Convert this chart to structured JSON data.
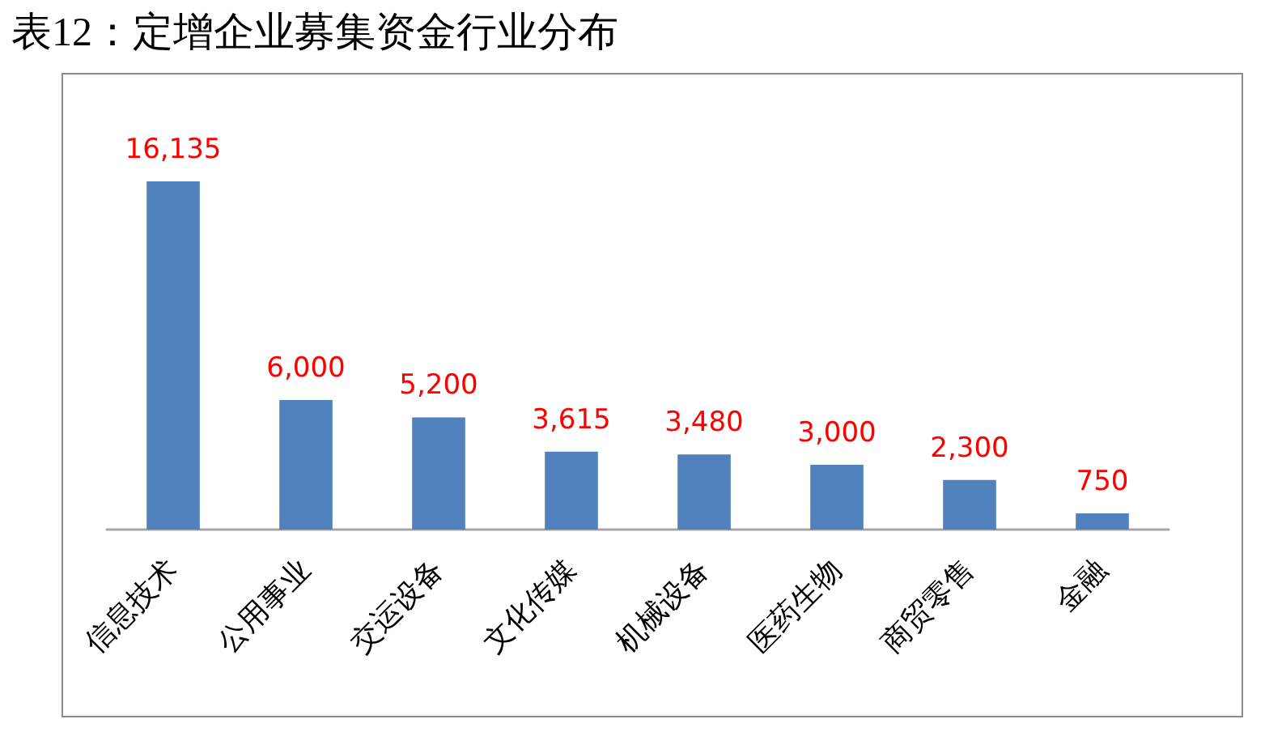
{
  "chart_data": {
    "type": "bar",
    "title": "表12：定增企业募集资金行业分布",
    "categories": [
      "信息技术",
      "公用事业",
      "交运设备",
      "文化传媒",
      "机械设备",
      "医药生物",
      "商贸零售",
      "金融"
    ],
    "values": [
      16135,
      6000,
      5200,
      3615,
      3480,
      3000,
      2300,
      750
    ],
    "value_labels": [
      "16,135",
      "6,000",
      "5,200",
      "3,615",
      "3,480",
      "3,000",
      "2,300",
      "750"
    ],
    "color": "#4f81bd"
  }
}
